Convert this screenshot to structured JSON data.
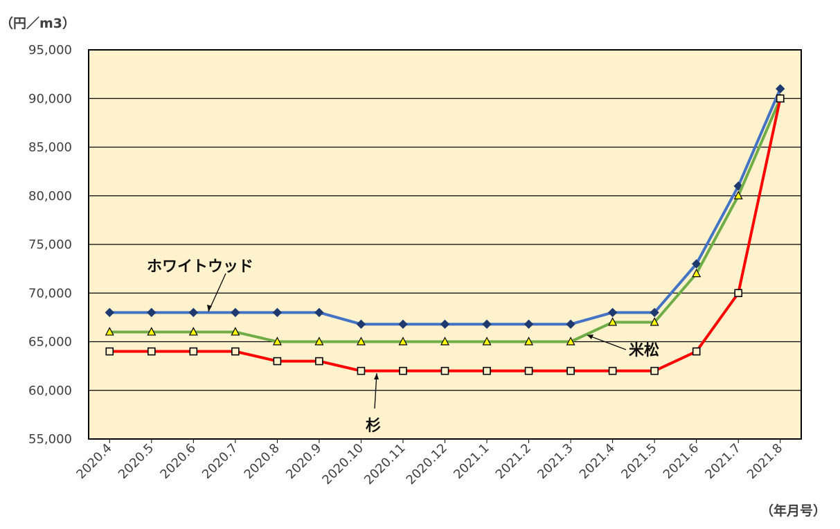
{
  "chart_data": {
    "type": "line",
    "title": "",
    "ylabel": "（円／m3）",
    "xlabel": "（年月号）",
    "ylim": [
      55000,
      95000
    ],
    "yticks": [
      55000,
      60000,
      65000,
      70000,
      75000,
      80000,
      85000,
      90000,
      95000
    ],
    "ytick_labels": [
      "55,000",
      "60,000",
      "65,000",
      "70,000",
      "75,000",
      "80,000",
      "85,000",
      "90,000",
      "95,000"
    ],
    "grid": true,
    "legend": "none",
    "categories": [
      "2020.4",
      "2020.5",
      "2020.6",
      "2020.7",
      "2020.8",
      "2020.9",
      "2020.10",
      "2020.11",
      "2020.12",
      "2021.1",
      "2021.2",
      "2021.3",
      "2021.4",
      "2021.5",
      "2021.6",
      "2021.7",
      "2021.8"
    ],
    "series": [
      {
        "name": "ホワイトウッド",
        "color": "#4472c4",
        "marker": "diamond",
        "values": [
          68000,
          68000,
          68000,
          68000,
          68000,
          68000,
          66800,
          66800,
          66800,
          66800,
          66800,
          66800,
          68000,
          68000,
          73000,
          81000,
          91000
        ]
      },
      {
        "name": "米松",
        "color": "#70ad47",
        "marker": "triangle",
        "values": [
          66000,
          66000,
          66000,
          66000,
          65000,
          65000,
          65000,
          65000,
          65000,
          65000,
          65000,
          65000,
          67000,
          67000,
          72000,
          80000,
          90000
        ]
      },
      {
        "name": "杉",
        "color": "#ff0000",
        "marker": "square",
        "values": [
          64000,
          64000,
          64000,
          64000,
          63000,
          63000,
          62000,
          62000,
          62000,
          62000,
          62000,
          62000,
          62000,
          62000,
          64000,
          70000,
          90000
        ]
      }
    ],
    "annotations": [
      "ホワイトウッド",
      "米松",
      "杉"
    ],
    "plot_background": "#fff2cc"
  }
}
